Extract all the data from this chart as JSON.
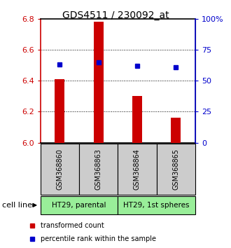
{
  "title": "GDS4511 / 230092_at",
  "samples": [
    "GSM368860",
    "GSM368863",
    "GSM368864",
    "GSM368865"
  ],
  "bar_values": [
    6.41,
    6.78,
    6.3,
    6.16
  ],
  "bar_base": 6.0,
  "percentile_values": [
    63,
    65,
    62,
    61
  ],
  "bar_color": "#cc0000",
  "dot_color": "#0000cc",
  "ylim": [
    6.0,
    6.8
  ],
  "yticks_left": [
    6.0,
    6.2,
    6.4,
    6.6,
    6.8
  ],
  "yticks_right": [
    0,
    25,
    50,
    75,
    100
  ],
  "ytick_labels_right": [
    "0",
    "25",
    "50",
    "75",
    "100%"
  ],
  "grid_values": [
    6.2,
    6.4,
    6.6
  ],
  "cell_line_groups": [
    {
      "label": "HT29, parental",
      "cols": [
        0,
        1
      ],
      "color": "#99ee99"
    },
    {
      "label": "HT29, 1st spheres",
      "cols": [
        2,
        3
      ],
      "color": "#99ee99"
    }
  ],
  "legend_bar_label": "transformed count",
  "legend_dot_label": "percentile rank within the sample",
  "cell_line_label": "cell line",
  "sample_box_color": "#cccccc"
}
